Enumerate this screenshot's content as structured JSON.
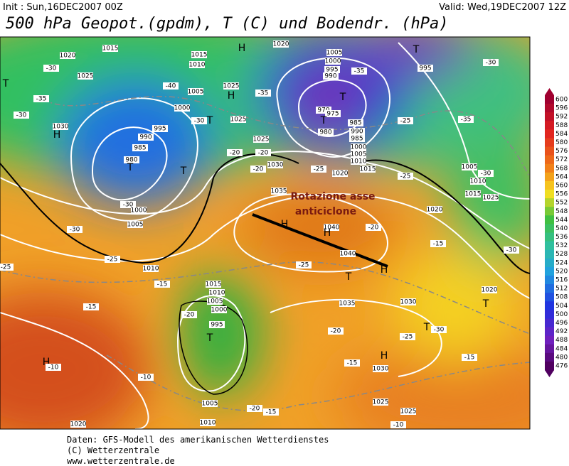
{
  "header": {
    "init": "Init : Sun,16DEC2007 00Z",
    "valid": "Valid: Wed,19DEC2007 12Z",
    "title": "500 hPa Geopot.(gpdm), T (C) und Bodendr. (hPa)"
  },
  "annotation": {
    "line1": "Rotazione asse",
    "line2": "anticiclone"
  },
  "colorbar": {
    "ticks": [
      600,
      596,
      592,
      588,
      584,
      580,
      576,
      572,
      568,
      564,
      560,
      556,
      552,
      548,
      544,
      540,
      536,
      532,
      528,
      524,
      520,
      516,
      512,
      508,
      504,
      500,
      496,
      492,
      488,
      484,
      480,
      476
    ]
  },
  "map": {
    "labels": [
      "1020",
      "1015",
      "H",
      "1020",
      "1005",
      "T",
      "995",
      "-30",
      "-30",
      "1025",
      "1015",
      "1010",
      "1000",
      "995",
      "990",
      "-35",
      "-40",
      "1005",
      "1025",
      "H",
      "-35",
      "-35",
      "T",
      "T",
      "-30",
      "1000",
      "-30",
      "T",
      "1025",
      "970",
      "975",
      "T",
      "980",
      "985",
      "990",
      "985",
      "-25",
      "-35",
      "1030",
      "H",
      "995",
      "990",
      "985",
      "980",
      "T",
      "T",
      "1000",
      "1005",
      "1010",
      "1015",
      "1020",
      "-25",
      "1025",
      "-20",
      "1030",
      "-20",
      "-20",
      "-30",
      "1005",
      "1000",
      "-30",
      "1035",
      "-25",
      "1040",
      "H",
      "H",
      "-20",
      "1040",
      "H",
      "-15",
      "1020",
      "1025",
      "1015",
      "1010",
      "1005",
      "-30",
      "-30",
      "-25",
      "-25",
      "-15",
      "1010",
      "1015",
      "1010",
      "1005",
      "1000",
      "-20",
      "995",
      "T",
      "-15",
      "-25",
      "T",
      "1035",
      "1030",
      "1020",
      "T",
      "T",
      "-30",
      "-20",
      "H",
      "-15",
      "1030",
      "-15",
      "-10",
      "H",
      "-10",
      "1005",
      "-20",
      "-15",
      "1025",
      "1025",
      "1020",
      "1010",
      "-10",
      "-25"
    ]
  },
  "footer": {
    "line1": "Daten: GFS-Modell des amerikanischen Wetterdienstes",
    "line2": "(C) Wetterzentrale",
    "line3": "www.wetterzentrale.de"
  }
}
